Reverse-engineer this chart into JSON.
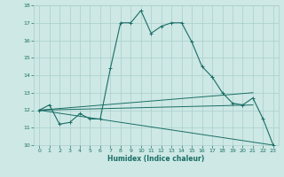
{
  "xlabel": "Humidex (Indice chaleur)",
  "ylabel": "",
  "xlim": [
    -0.5,
    23.5
  ],
  "ylim": [
    10,
    18
  ],
  "yticks": [
    10,
    11,
    12,
    13,
    14,
    15,
    16,
    17,
    18
  ],
  "xticks": [
    0,
    1,
    2,
    3,
    4,
    5,
    6,
    7,
    8,
    9,
    10,
    11,
    12,
    13,
    14,
    15,
    16,
    17,
    18,
    19,
    20,
    21,
    22,
    23
  ],
  "bg_color": "#cde8e5",
  "grid_color": "#aacfcc",
  "line_color": "#1a6e65",
  "series_main": {
    "x": [
      0,
      1,
      2,
      3,
      4,
      5,
      6,
      7,
      8,
      9,
      10,
      11,
      12,
      13,
      14,
      15,
      16,
      17,
      18,
      19,
      20,
      21,
      22,
      23
    ],
    "y": [
      12.0,
      12.3,
      11.2,
      11.3,
      11.8,
      11.5,
      11.5,
      14.4,
      17.0,
      17.0,
      17.7,
      16.4,
      16.8,
      17.0,
      17.0,
      15.9,
      14.5,
      13.9,
      13.0,
      12.4,
      12.3,
      12.7,
      11.5,
      10.0
    ]
  },
  "series_fan": [
    {
      "x": [
        0,
        21
      ],
      "y": [
        12.0,
        13.0
      ]
    },
    {
      "x": [
        0,
        21
      ],
      "y": [
        12.0,
        12.3
      ]
    },
    {
      "x": [
        0,
        23
      ],
      "y": [
        12.0,
        10.0
      ]
    }
  ]
}
